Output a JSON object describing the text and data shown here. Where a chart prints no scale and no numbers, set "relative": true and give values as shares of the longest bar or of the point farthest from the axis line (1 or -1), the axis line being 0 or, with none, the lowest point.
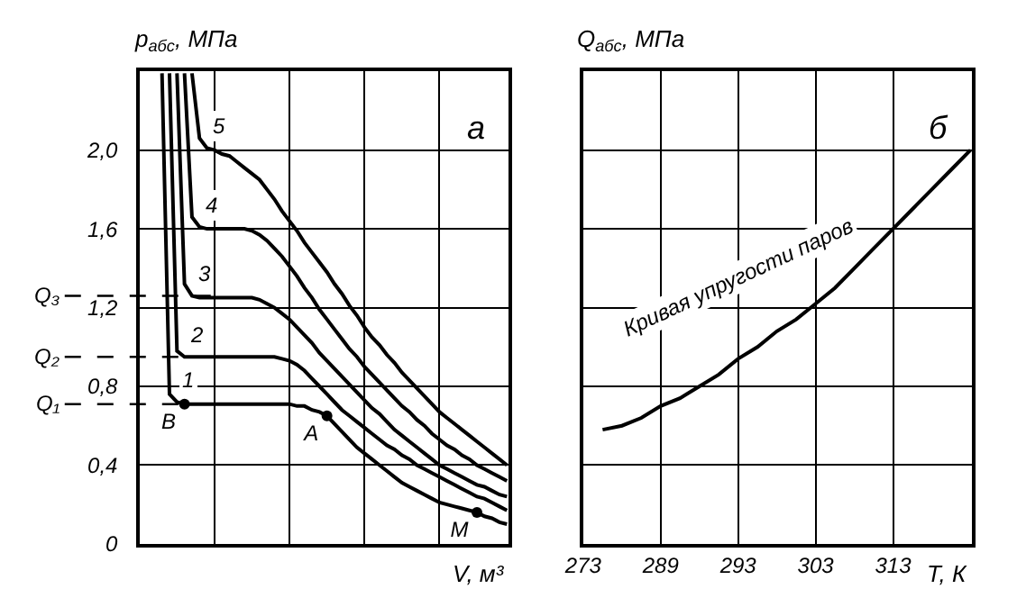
{
  "chart_data": [
    {
      "type": "line",
      "xlabel": "V, м³",
      "ylabel": "p$_{абс}$, МПа",
      "categories": [
        null,
        null,
        null,
        null,
        null,
        null,
        null,
        null,
        null,
        null,
        null,
        null,
        null,
        null,
        null,
        null,
        null,
        null,
        null,
        null,
        null,
        null,
        null,
        null,
        null,
        null,
        null,
        null,
        null,
        null,
        null,
        null,
        null,
        null,
        null,
        null,
        null,
        null,
        null,
        null,
        null,
        null,
        null,
        null,
        null,
        null,
        null,
        null,
        null,
        null
      ],
      "series": [
        {
          "name": "1",
          "color": "#000000",
          "values": [
            null,
            null,
            null,
            2.39,
            0.76,
            0.72,
            0.71,
            0.71,
            0.71,
            0.71,
            0.71,
            0.71,
            0.71,
            0.71,
            0.71,
            0.71,
            0.71,
            0.71,
            0.71,
            0.71,
            0.71,
            0.7,
            0.7,
            0.68,
            0.67,
            0.65,
            0.61,
            0.57,
            0.53,
            0.49,
            0.46,
            0.43,
            0.4,
            0.37,
            0.34,
            0.31,
            0.29,
            0.27,
            0.25,
            0.23,
            0.21,
            0.2,
            0.19,
            0.18,
            0.17,
            0.16,
            0.14,
            0.13,
            0.11,
            0.1
          ]
        },
        {
          "name": "2",
          "color": "#000000",
          "values": [
            null,
            null,
            null,
            null,
            2.39,
            0.98,
            0.95,
            0.95,
            0.95,
            0.95,
            0.95,
            0.95,
            0.95,
            0.95,
            0.95,
            0.95,
            0.95,
            0.95,
            0.95,
            0.94,
            0.93,
            0.91,
            0.88,
            0.84,
            0.8,
            0.76,
            0.72,
            0.68,
            0.65,
            0.62,
            0.59,
            0.56,
            0.53,
            0.5,
            0.48,
            0.45,
            0.43,
            0.4,
            0.38,
            0.36,
            0.34,
            0.32,
            0.3,
            0.28,
            0.26,
            0.24,
            0.23,
            0.21,
            0.19,
            0.17
          ]
        },
        {
          "name": "3",
          "color": "#000000",
          "values": [
            null,
            null,
            null,
            null,
            null,
            2.39,
            1.32,
            1.26,
            1.25,
            1.25,
            1.25,
            1.25,
            1.25,
            1.25,
            1.25,
            1.25,
            1.24,
            1.22,
            1.2,
            1.17,
            1.14,
            1.1,
            1.06,
            1.02,
            0.97,
            0.93,
            0.89,
            0.85,
            0.81,
            0.77,
            0.73,
            0.69,
            0.66,
            0.62,
            0.58,
            0.55,
            0.52,
            0.49,
            0.46,
            0.43,
            0.4,
            0.38,
            0.36,
            0.34,
            0.32,
            0.3,
            0.29,
            0.27,
            0.25,
            0.24
          ]
        },
        {
          "name": "4",
          "color": "#000000",
          "values": [
            null,
            null,
            null,
            null,
            null,
            null,
            2.39,
            1.66,
            1.61,
            1.6,
            1.6,
            1.6,
            1.6,
            1.6,
            1.6,
            1.59,
            1.57,
            1.54,
            1.5,
            1.46,
            1.41,
            1.36,
            1.3,
            1.25,
            1.19,
            1.14,
            1.09,
            1.04,
            0.99,
            0.95,
            0.9,
            0.86,
            0.82,
            0.78,
            0.74,
            0.7,
            0.67,
            0.63,
            0.6,
            0.56,
            0.53,
            0.5,
            0.48,
            0.45,
            0.43,
            0.4,
            0.38,
            0.36,
            0.34,
            0.32
          ]
        },
        {
          "name": "5",
          "color": "#000000",
          "values": [
            null,
            null,
            null,
            null,
            null,
            null,
            null,
            2.39,
            2.06,
            2.01,
            2.0,
            1.98,
            1.97,
            1.94,
            1.91,
            1.88,
            1.85,
            1.8,
            1.75,
            1.69,
            1.64,
            1.59,
            1.53,
            1.48,
            1.43,
            1.38,
            1.32,
            1.27,
            1.21,
            1.16,
            1.1,
            1.05,
            1.01,
            0.96,
            0.92,
            0.87,
            0.83,
            0.79,
            0.75,
            0.71,
            0.67,
            0.64,
            0.61,
            0.58,
            0.55,
            0.52,
            0.49,
            0.46,
            0.43,
            0.4
          ]
        },
        {
          "type": "scatter",
          "marker": "circle",
          "color": "#000000",
          "values": [
            null,
            null,
            null,
            null,
            null,
            null,
            0.71,
            null,
            null,
            null,
            null,
            null,
            null,
            null,
            null,
            null,
            null,
            null,
            null,
            null,
            null,
            null,
            null,
            null,
            null,
            0.65,
            null,
            null,
            null,
            null,
            null,
            null,
            null,
            null,
            null,
            null,
            null,
            null,
            null,
            null,
            null,
            null,
            null,
            null,
            null,
            0.16,
            null,
            null,
            null,
            null
          ],
          "value_labels": [
            null,
            null,
            null,
            null,
            null,
            null,
            "В",
            null,
            null,
            null,
            null,
            null,
            null,
            null,
            null,
            null,
            null,
            null,
            null,
            null,
            null,
            null,
            null,
            null,
            null,
            "А",
            null,
            null,
            null,
            null,
            null,
            null,
            null,
            null,
            null,
            null,
            null,
            null,
            null,
            null,
            null,
            null,
            null,
            null,
            null,
            "М",
            null,
            null,
            null,
            null
          ]
        }
      ],
      "ylim": [
        0,
        2.4
      ],
      "yticks": [
        0,
        {
          "value": 0.4,
          "label": "0,4"
        },
        {
          "value": 0.8,
          "label": "0,8"
        },
        {
          "value": 1.2,
          "label": "1,2"
        },
        {
          "value": 1.6,
          "label": "1,6"
        },
        {
          "value": 2.0,
          "label": "2,0"
        }
      ],
      "ref_lines": [
        {
          "axis": "y",
          "value": 0.71,
          "label": "Q₁",
          "line_style": "dashed"
        },
        {
          "axis": "y",
          "value": 0.95,
          "label": "Q₂",
          "line_style": "dashed"
        },
        {
          "axis": "y",
          "value": 1.26,
          "label": "Q₃",
          "line_style": "dashed"
        }
      ],
      "annotations": [
        "а"
      ],
      "grid": true,
      "marker": "none",
      "line_style": "solid",
      "tick_labels": "y"
    },
    {
      "type": "line",
      "xlabel": "T, К",
      "ylabel": "Q$_{абс}$, МПа",
      "relative": true,
      "categories": [
        "273",
        null,
        null,
        null,
        "289",
        null,
        null,
        null,
        "293",
        null,
        null,
        null,
        "303",
        null,
        null,
        null,
        "313",
        null,
        null,
        null,
        null
      ],
      "series": [
        {
          "color": "#000000",
          "values": [
            null,
            0.29,
            0.3,
            0.32,
            0.35,
            0.37,
            0.4,
            0.43,
            0.47,
            0.5,
            0.54,
            0.57,
            0.61,
            0.65,
            0.7,
            0.75,
            0.8,
            0.85,
            0.9,
            0.95,
            1.0
          ]
        }
      ],
      "annotations": [
        "б",
        {
          "text": "Кривая упругости паров",
          "x": "293",
          "y": 0.5
        }
      ],
      "grid": true,
      "marker": "none",
      "line_style": "solid",
      "tick_labels": "x"
    }
  ]
}
